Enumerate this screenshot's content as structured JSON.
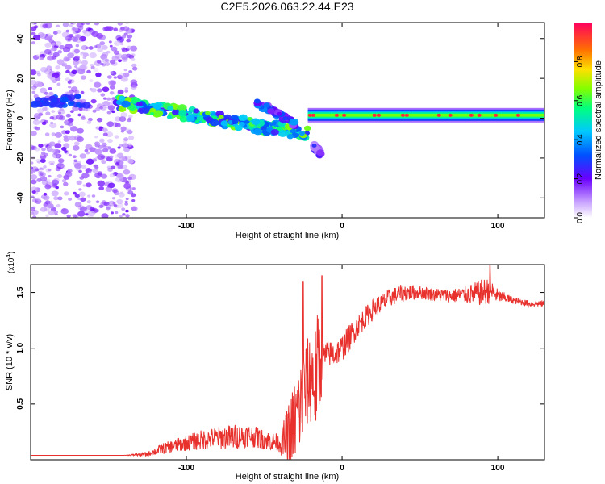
{
  "title": "C2E5.2026.063.22.44.E23",
  "chart_data": [
    {
      "type": "heatmap",
      "name": "spectrogram",
      "xlabel": "Height of straight line (km)",
      "ylabel": "Frequency (Hz)",
      "xlim": [
        -200,
        130
      ],
      "ylim": [
        -50,
        48
      ],
      "xticks": [
        -100,
        0,
        100
      ],
      "yticks": [
        -40,
        -20,
        0,
        20,
        40
      ],
      "xtick_labels": [
        "-100",
        "0",
        "100"
      ],
      "ytick_labels": [
        "-40",
        "-20",
        "0",
        "20",
        "40"
      ],
      "colorbar": {
        "label": "Normalized spectral amplitude",
        "range": [
          0,
          1
        ],
        "ticks": [
          0.0,
          0.2,
          0.4,
          0.6,
          0.8
        ],
        "tick_labels": [
          "0.0",
          "0.2",
          "0.4",
          "0.6",
          "0.8"
        ]
      },
      "features": [
        {
          "region": "noise",
          "x_range": [
            -200,
            -133
          ],
          "y_range": [
            -50,
            48
          ],
          "amplitude": 0.1
        },
        {
          "region": "main-trace",
          "x_range": [
            -145,
            -22
          ],
          "freq_start": 8,
          "freq_end": -8,
          "amplitude": 0.5
        },
        {
          "region": "upper-branch",
          "x_range": [
            -55,
            -30
          ],
          "freq_start": 8,
          "freq_end": -3,
          "amplitude": 0.3
        },
        {
          "region": "lower-tail",
          "x_range": [
            -18,
            -14
          ],
          "freq_start": -14,
          "freq_end": -18,
          "amplitude": 0.2
        },
        {
          "region": "steady-trace",
          "x_range": [
            -22,
            130
          ],
          "freq": 1.5,
          "amplitude": 0.65
        }
      ]
    },
    {
      "type": "line",
      "name": "snr",
      "xlabel": "Height of straight line (km)",
      "ylabel": "SNR (10 * v/v)",
      "y_multiplier_label": "(x10",
      "y_multiplier_exp": "4",
      "y_multiplier_close": ")",
      "xlim": [
        -200,
        130
      ],
      "ylim": [
        0,
        1.75
      ],
      "xticks": [
        -100,
        0,
        100
      ],
      "yticks": [
        0.5,
        1.0,
        1.5
      ],
      "xtick_labels": [
        "-100",
        "0",
        "100"
      ],
      "ytick_labels": [
        "0.5",
        "1.0",
        "1.5"
      ],
      "color": "#e8302c",
      "x": [
        -200,
        -170,
        -140,
        -125,
        -115,
        -100,
        -90,
        -80,
        -70,
        -60,
        -50,
        -40,
        -35,
        -30,
        -25,
        -22,
        -20,
        -17,
        -15,
        -12,
        -10,
        -5,
        0,
        5,
        10,
        20,
        30,
        40,
        50,
        60,
        70,
        80,
        90,
        95,
        100,
        110,
        120,
        130
      ],
      "values": [
        0.04,
        0.04,
        0.04,
        0.05,
        0.1,
        0.15,
        0.18,
        0.2,
        0.2,
        0.22,
        0.18,
        0.15,
        0.18,
        0.35,
        0.55,
        0.7,
        0.75,
        0.72,
        0.85,
        0.9,
        0.95,
        0.95,
        1.0,
        1.1,
        1.2,
        1.35,
        1.45,
        1.5,
        1.5,
        1.48,
        1.47,
        1.48,
        1.5,
        1.52,
        1.47,
        1.43,
        1.4,
        1.4
      ],
      "noise": [
        0.0,
        0.0,
        0.0,
        0.02,
        0.05,
        0.07,
        0.09,
        0.1,
        0.12,
        0.1,
        0.09,
        0.08,
        0.3,
        0.4,
        0.45,
        0.4,
        0.45,
        0.5,
        0.55,
        0.15,
        0.12,
        0.12,
        0.12,
        0.12,
        0.1,
        0.1,
        0.08,
        0.08,
        0.06,
        0.06,
        0.06,
        0.08,
        0.12,
        0.12,
        0.06,
        0.03,
        0.03,
        0.03
      ],
      "peaks": [
        {
          "x": -25,
          "y": 1.6
        },
        {
          "x": -13,
          "y": 1.65
        },
        {
          "x": 95,
          "y": 1.75
        }
      ]
    }
  ]
}
